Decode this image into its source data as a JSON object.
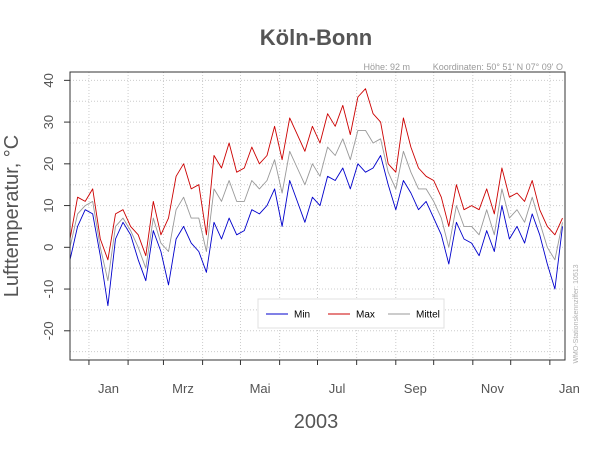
{
  "chart_data": {
    "type": "line",
    "title": "Köln-Bonn",
    "meta": {
      "hoehe": "Höhe: 92 m",
      "koordinaten": "Koordinaten: 50° 51' N  07° 09' O"
    },
    "xlabel": "2003",
    "ylabel": "Lufttemperatur, °C",
    "x_tick_labels": [
      "Jan",
      "Mrz",
      "Mai",
      "Jul",
      "Sep",
      "Nov",
      "Jan"
    ],
    "x_tick_dates": [
      "2003-01-01",
      "2003-03-01",
      "2003-05-01",
      "2003-07-01",
      "2003-09-01",
      "2003-11-01",
      "2004-01-01"
    ],
    "x_range": [
      "2002-12-17",
      "2004-01-13"
    ],
    "ylim": [
      -27,
      42
    ],
    "y_ticks": [
      -20,
      -10,
      0,
      10,
      20,
      30,
      40
    ],
    "grid": true,
    "legend_position": "bottom-center",
    "station_note": "WMO-Stationskennziffer: 10513",
    "series": [
      {
        "name": "Min",
        "color": "#0000cc",
        "x": [
          "2002-12-17",
          "2002-12-23",
          "2002-12-29",
          "2003-01-04",
          "2003-01-10",
          "2003-01-16",
          "2003-01-22",
          "2003-01-28",
          "2003-02-03",
          "2003-02-09",
          "2003-02-15",
          "2003-02-21",
          "2003-02-27",
          "2003-03-05",
          "2003-03-11",
          "2003-03-17",
          "2003-03-23",
          "2003-03-29",
          "2003-04-04",
          "2003-04-10",
          "2003-04-16",
          "2003-04-22",
          "2003-04-28",
          "2003-05-04",
          "2003-05-10",
          "2003-05-16",
          "2003-05-22",
          "2003-05-28",
          "2003-06-03",
          "2003-06-09",
          "2003-06-15",
          "2003-06-21",
          "2003-06-27",
          "2003-07-03",
          "2003-07-09",
          "2003-07-15",
          "2003-07-21",
          "2003-07-27",
          "2003-08-02",
          "2003-08-08",
          "2003-08-14",
          "2003-08-20",
          "2003-08-26",
          "2003-09-01",
          "2003-09-07",
          "2003-09-13",
          "2003-09-19",
          "2003-09-25",
          "2003-10-01",
          "2003-10-07",
          "2003-10-13",
          "2003-10-19",
          "2003-10-25",
          "2003-10-31",
          "2003-11-06",
          "2003-11-12",
          "2003-11-18",
          "2003-11-24",
          "2003-11-30",
          "2003-12-06",
          "2003-12-12",
          "2003-12-18",
          "2003-12-24",
          "2003-12-30",
          "2004-01-05",
          "2004-01-11"
        ],
        "values": [
          -3,
          5,
          9,
          8,
          -2,
          -14,
          2,
          6,
          3,
          -3,
          -8,
          4,
          -1,
          -9,
          2,
          5,
          1,
          -1,
          -6,
          6,
          2,
          7,
          3,
          4,
          9,
          8,
          10,
          14,
          5,
          16,
          11,
          6,
          12,
          10,
          17,
          16,
          19,
          14,
          20,
          18,
          19,
          22,
          15,
          9,
          16,
          13,
          9,
          11,
          7,
          3,
          -4,
          6,
          2,
          1,
          -2,
          4,
          -1,
          10,
          2,
          5,
          1,
          8,
          3,
          -4,
          -10,
          5
        ]
      },
      {
        "name": "Max",
        "color": "#cc0000",
        "x": [
          "2002-12-17",
          "2002-12-23",
          "2002-12-29",
          "2003-01-04",
          "2003-01-10",
          "2003-01-16",
          "2003-01-22",
          "2003-01-28",
          "2003-02-03",
          "2003-02-09",
          "2003-02-15",
          "2003-02-21",
          "2003-02-27",
          "2003-03-05",
          "2003-03-11",
          "2003-03-17",
          "2003-03-23",
          "2003-03-29",
          "2003-04-04",
          "2003-04-10",
          "2003-04-16",
          "2003-04-22",
          "2003-04-28",
          "2003-05-04",
          "2003-05-10",
          "2003-05-16",
          "2003-05-22",
          "2003-05-28",
          "2003-06-03",
          "2003-06-09",
          "2003-06-15",
          "2003-06-21",
          "2003-06-27",
          "2003-07-03",
          "2003-07-09",
          "2003-07-15",
          "2003-07-21",
          "2003-07-27",
          "2003-08-02",
          "2003-08-08",
          "2003-08-14",
          "2003-08-20",
          "2003-08-26",
          "2003-09-01",
          "2003-09-07",
          "2003-09-13",
          "2003-09-19",
          "2003-09-25",
          "2003-10-01",
          "2003-10-07",
          "2003-10-13",
          "2003-10-19",
          "2003-10-25",
          "2003-10-31",
          "2003-11-06",
          "2003-11-12",
          "2003-11-18",
          "2003-11-24",
          "2003-11-30",
          "2003-12-06",
          "2003-12-12",
          "2003-12-18",
          "2003-12-24",
          "2003-12-30",
          "2004-01-05",
          "2004-01-11"
        ],
        "values": [
          2,
          12,
          11,
          14,
          2,
          -3,
          8,
          9,
          5,
          3,
          -2,
          11,
          3,
          7,
          17,
          20,
          14,
          15,
          3,
          22,
          19,
          25,
          18,
          19,
          24,
          20,
          22,
          29,
          21,
          31,
          27,
          23,
          29,
          25,
          32,
          29,
          34,
          27,
          36,
          38,
          32,
          30,
          20,
          18,
          31,
          24,
          19,
          17,
          16,
          12,
          5,
          15,
          9,
          10,
          9,
          14,
          8,
          19,
          12,
          13,
          11,
          16,
          9,
          5,
          3,
          7
        ]
      },
      {
        "name": "Mittel",
        "color": "#999999",
        "x": [
          "2002-12-17",
          "2002-12-23",
          "2002-12-29",
          "2003-01-04",
          "2003-01-10",
          "2003-01-16",
          "2003-01-22",
          "2003-01-28",
          "2003-02-03",
          "2003-02-09",
          "2003-02-15",
          "2003-02-21",
          "2003-02-27",
          "2003-03-05",
          "2003-03-11",
          "2003-03-17",
          "2003-03-23",
          "2003-03-29",
          "2003-04-04",
          "2003-04-10",
          "2003-04-16",
          "2003-04-22",
          "2003-04-28",
          "2003-05-04",
          "2003-05-10",
          "2003-05-16",
          "2003-05-22",
          "2003-05-28",
          "2003-06-03",
          "2003-06-09",
          "2003-06-15",
          "2003-06-21",
          "2003-06-27",
          "2003-07-03",
          "2003-07-09",
          "2003-07-15",
          "2003-07-21",
          "2003-07-27",
          "2003-08-02",
          "2003-08-08",
          "2003-08-14",
          "2003-08-20",
          "2003-08-26",
          "2003-09-01",
          "2003-09-07",
          "2003-09-13",
          "2003-09-19",
          "2003-09-25",
          "2003-10-01",
          "2003-10-07",
          "2003-10-13",
          "2003-10-19",
          "2003-10-25",
          "2003-10-31",
          "2003-11-06",
          "2003-11-12",
          "2003-11-18",
          "2003-11-24",
          "2003-11-30",
          "2003-12-06",
          "2003-12-12",
          "2003-12-18",
          "2003-12-24",
          "2003-12-30",
          "2004-01-05",
          "2004-01-11"
        ],
        "values": [
          0,
          8,
          10,
          11,
          0,
          -8,
          5,
          7,
          4,
          0,
          -5,
          7,
          1,
          -1,
          9,
          12,
          7,
          7,
          -1,
          14,
          11,
          16,
          11,
          11,
          16,
          14,
          16,
          21,
          13,
          23,
          19,
          15,
          20,
          17,
          24,
          22,
          26,
          21,
          28,
          28,
          25,
          26,
          18,
          14,
          23,
          18,
          14,
          14,
          11,
          7,
          0,
          10,
          5,
          5,
          3,
          9,
          3,
          14,
          7,
          9,
          6,
          12,
          6,
          0,
          -3,
          6
        ]
      }
    ]
  }
}
